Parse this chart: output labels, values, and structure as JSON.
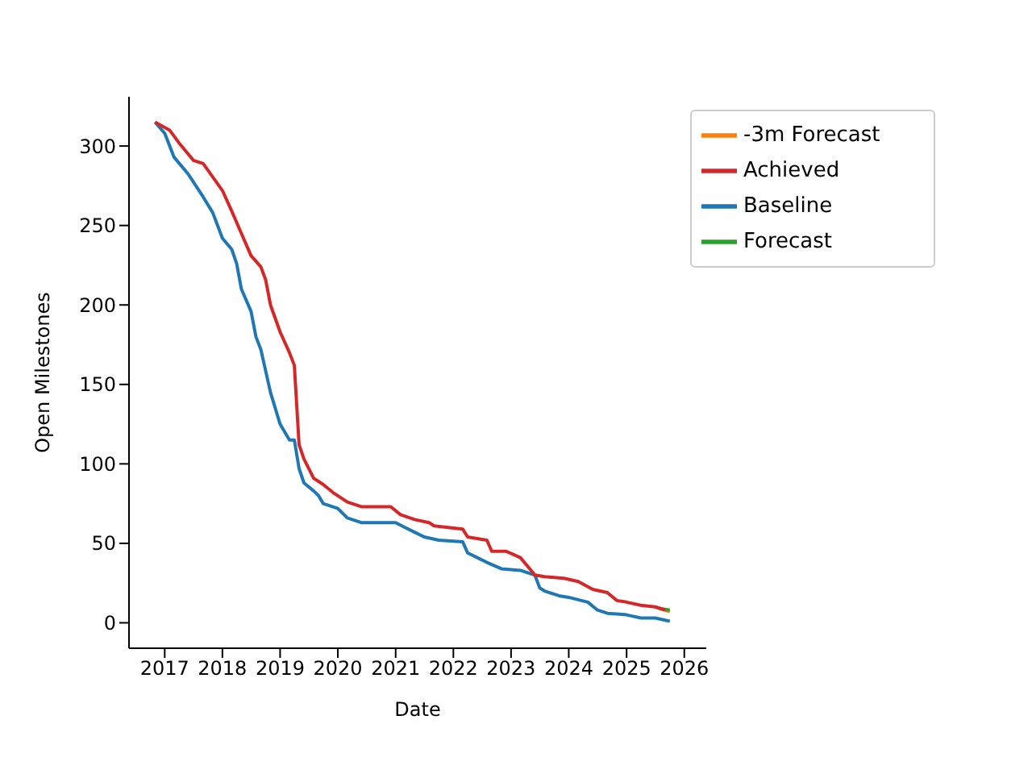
{
  "chart_data": {
    "type": "line",
    "xlabel": "Date",
    "ylabel": "Open Milestones",
    "xlim": [
      "2016-05-20",
      "2026-05-20"
    ],
    "xticks": [
      "2017",
      "2018",
      "2019",
      "2020",
      "2021",
      "2022",
      "2023",
      "2024",
      "2025",
      "2026"
    ],
    "ylim": [
      -16,
      331
    ],
    "yticks": [
      0,
      50,
      100,
      150,
      200,
      250,
      300
    ],
    "legend": "top right",
    "grid": false,
    "series": [
      {
        "name": "Baseline",
        "color": "#1f77b4",
        "x": [
          "2016-11",
          "2017-01",
          "2017-03",
          "2017-06",
          "2017-09",
          "2017-11",
          "2018-01",
          "2018-03",
          "2018-04",
          "2018-05",
          "2018-07",
          "2018-08",
          "2018-09",
          "2018-11",
          "2019-01",
          "2019-03",
          "2019-04",
          "2019-05",
          "2019-06",
          "2019-08",
          "2019-09",
          "2019-10",
          "2020-01",
          "2020-03",
          "2020-06",
          "2021-01",
          "2021-03",
          "2021-05",
          "2021-07",
          "2021-10",
          "2022-03",
          "2022-04",
          "2022-06",
          "2022-08",
          "2022-11",
          "2023-03",
          "2023-06",
          "2023-07",
          "2023-08",
          "2023-11",
          "2024-01",
          "2024-05",
          "2024-07",
          "2024-09",
          "2025-01",
          "2025-04",
          "2025-07",
          "2025-10"
        ],
        "values": [
          315,
          308,
          293,
          282,
          268,
          258,
          242,
          235,
          226,
          210,
          196,
          180,
          172,
          145,
          125,
          115,
          115,
          97,
          88,
          83,
          80,
          75,
          72,
          66,
          63,
          63,
          60,
          57,
          54,
          52,
          51,
          44,
          41,
          38,
          34,
          33,
          30,
          22,
          20,
          17,
          16,
          13,
          8,
          6,
          5,
          3,
          3,
          1
        ]
      },
      {
        "name": "-3m Forecast",
        "color": "#ff7f0e",
        "x": [
          "2025-07",
          "2025-10"
        ],
        "values": [
          10,
          7
        ]
      },
      {
        "name": "Forecast",
        "color": "#2ca02c",
        "x": [
          "2025-08",
          "2025-10"
        ],
        "values": [
          9,
          8
        ]
      },
      {
        "name": "Achieved",
        "color": "#d62728",
        "x": [
          "2016-11",
          "2017-02",
          "2017-04",
          "2017-07",
          "2017-09",
          "2018-01",
          "2018-03",
          "2018-05",
          "2018-07",
          "2018-09",
          "2018-10",
          "2018-11",
          "2019-01",
          "2019-03",
          "2019-04",
          "2019-05",
          "2019-06",
          "2019-08",
          "2019-10",
          "2019-12",
          "2020-03",
          "2020-06",
          "2020-12",
          "2021-02",
          "2021-05",
          "2021-08",
          "2021-09",
          "2022-03",
          "2022-04",
          "2022-08",
          "2022-09",
          "2022-12",
          "2023-03",
          "2023-06",
          "2023-08",
          "2023-12",
          "2024-03",
          "2024-06",
          "2024-09",
          "2024-11",
          "2025-01",
          "2025-04",
          "2025-07",
          "2025-09"
        ],
        "values": [
          315,
          310,
          302,
          291,
          289,
          272,
          259,
          245,
          231,
          224,
          216,
          200,
          183,
          170,
          162,
          112,
          103,
          91,
          87,
          82,
          76,
          73,
          73,
          68,
          65,
          63,
          61,
          59,
          54,
          52,
          45,
          45,
          41,
          30,
          29,
          28,
          26,
          21,
          19,
          14,
          13,
          11,
          10,
          8
        ]
      }
    ]
  }
}
